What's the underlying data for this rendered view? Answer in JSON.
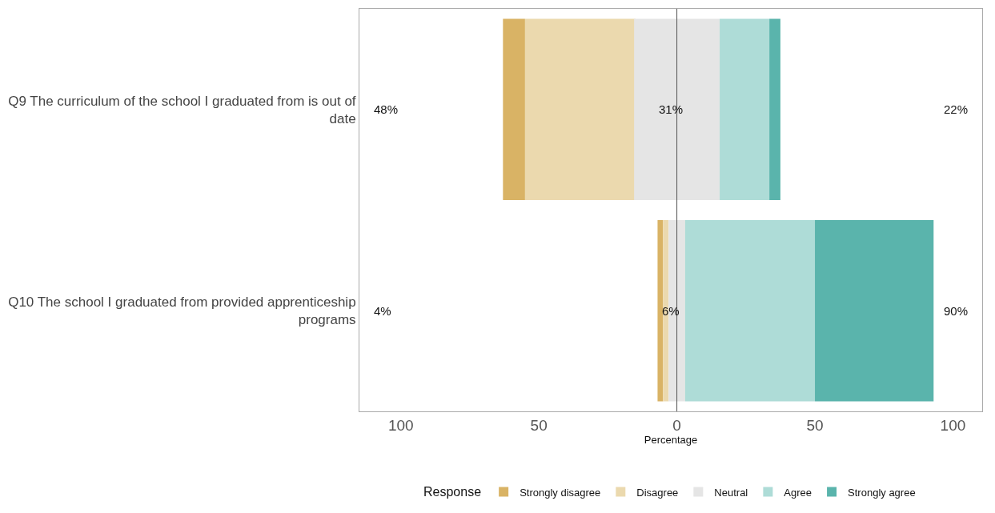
{
  "chart_data": {
    "type": "bar",
    "orientation": "horizontal",
    "xlabel": "Percentage",
    "legend_title": "Response",
    "legend": "bottom",
    "categories": [
      "Q9 The curriculum of the school I graduated from is out of date",
      "Q10 The school I graduated from provided apprenticeship programs"
    ],
    "series": [
      {
        "name": "Strongly disagree",
        "color": "#d9b365",
        "values": [
          8,
          2
        ],
        "base": [
          -63,
          -7
        ]
      },
      {
        "name": "Disagree",
        "color": "#ebd9ae",
        "values": [
          40,
          2
        ],
        "base": [
          -55,
          -5
        ]
      },
      {
        "name": "Neutral",
        "color": "#e5e5e5",
        "values": [
          31,
          6
        ],
        "base": [
          -15.5,
          -3
        ]
      },
      {
        "name": "Agree",
        "color": "#aedcd7",
        "values": [
          18,
          47
        ],
        "base": [
          15.5,
          3
        ]
      },
      {
        "name": "Strongly agree",
        "color": "#5ab4ac",
        "values": [
          4,
          43
        ],
        "base": [
          33.5,
          50
        ]
      }
    ],
    "xlim": [
      -115,
      110.6
    ],
    "xticks": [
      {
        "value": -100,
        "label": "100"
      },
      {
        "value": -50,
        "label": "50"
      },
      0,
      50,
      100
    ],
    "ref_lines": [
      {
        "axis": "x",
        "value": 0,
        "color": "#555555"
      }
    ],
    "annotations": [
      "48%",
      "31%",
      "22%",
      "4%",
      "6%",
      "90%"
    ]
  }
}
